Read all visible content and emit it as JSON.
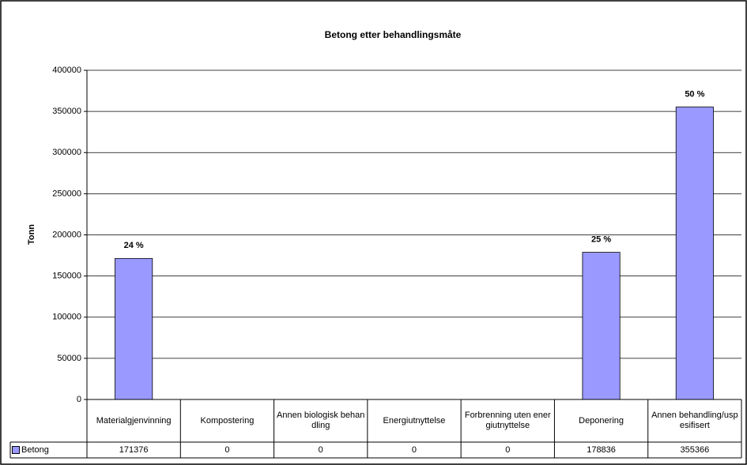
{
  "chart_data": {
    "type": "bar",
    "title": "Betong etter behandlingsmåte",
    "y_label": "Tonn",
    "categories": [
      "Materialgjenvinning",
      "Kompostering",
      "Annen biologisk behandling",
      "Energiutnyttelse",
      "Forbrenning uten energiutnyttelse",
      "Deponering",
      "Annen behandling/uspesifisert"
    ],
    "series": [
      {
        "name": "Betong",
        "color": "#9999ff",
        "values": [
          171376,
          0,
          0,
          0,
          0,
          178836,
          355366
        ],
        "value_labels": [
          "24 %",
          null,
          null,
          null,
          null,
          "25 %",
          "50 %"
        ]
      }
    ],
    "ylim": [
      0,
      400000
    ],
    "yticks": [
      0,
      50000,
      100000,
      150000,
      200000,
      250000,
      300000,
      350000,
      400000
    ],
    "grid": true
  }
}
